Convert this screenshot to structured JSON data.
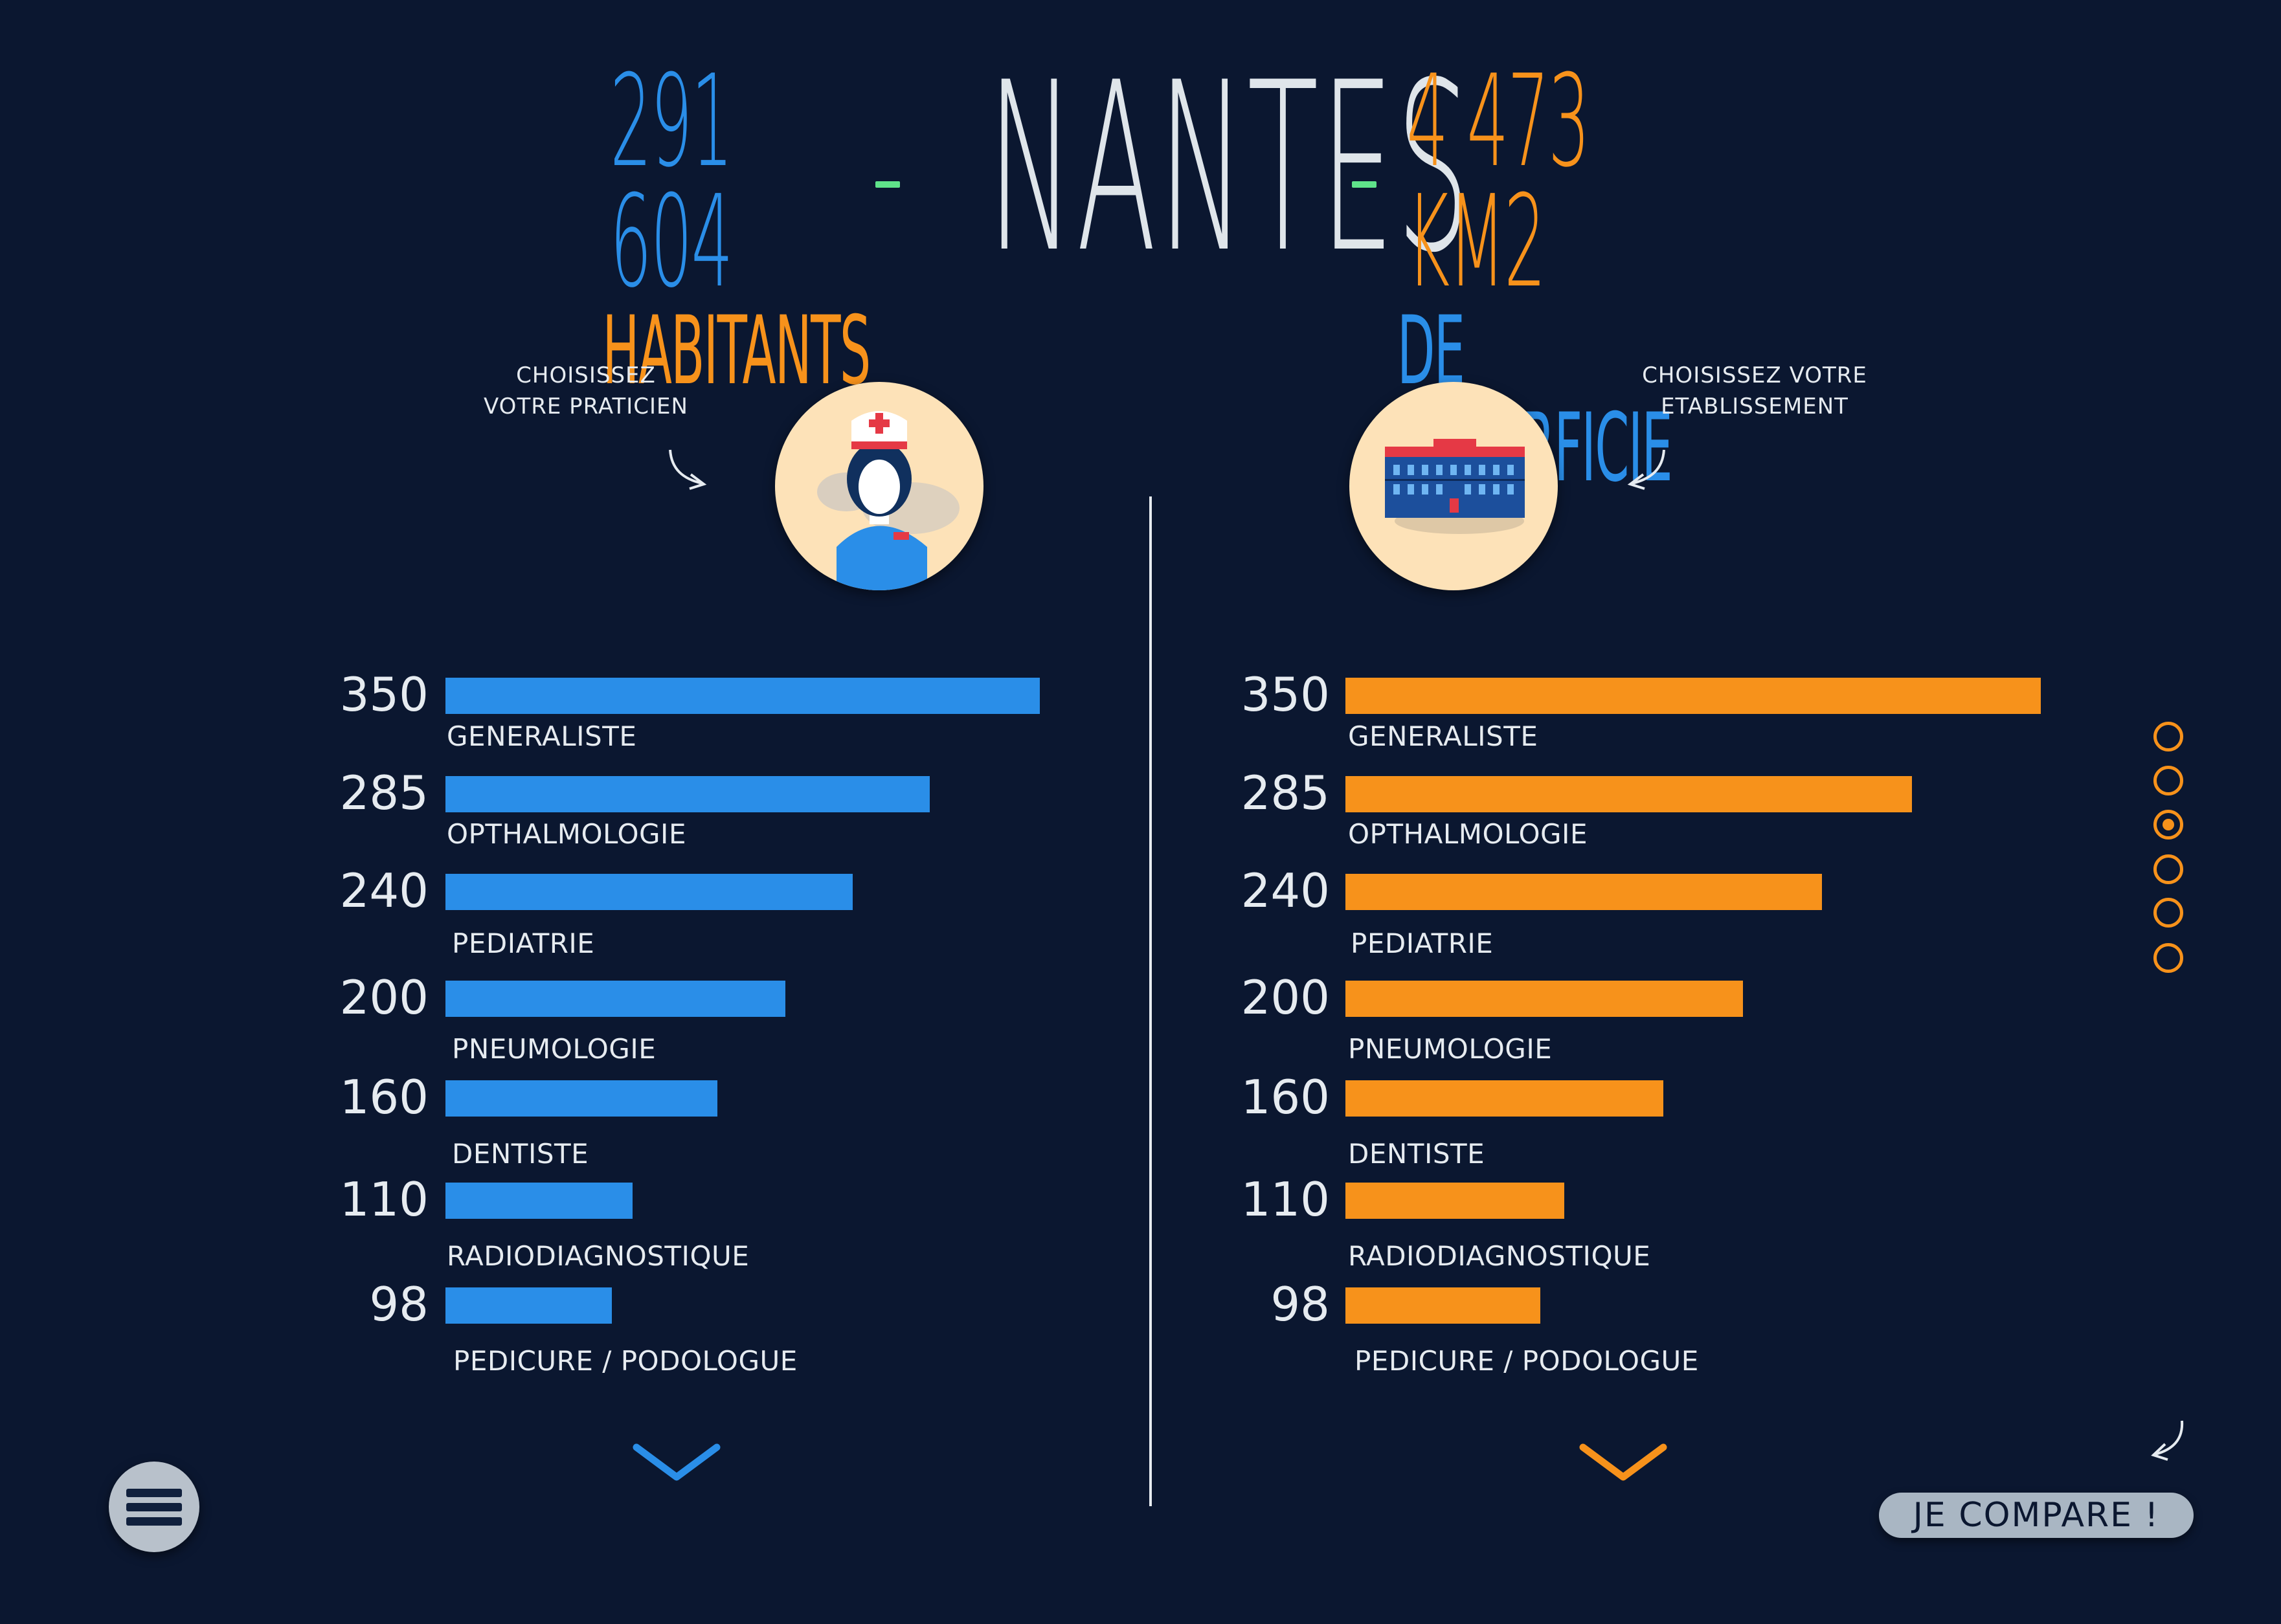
{
  "header": {
    "population_value": "291 604",
    "population_label": "HABITANTS",
    "city": "NANTES",
    "area_value": "4 473 KM2",
    "area_label": "DE SUPERFICIE"
  },
  "left_panel": {
    "prompt_line1": "CHOISISSEZ",
    "prompt_line2": "VOTRE PRATICIEN",
    "icon": "nurse-icon"
  },
  "right_panel": {
    "prompt_line1": "CHOISISSEZ VOTRE",
    "prompt_line2": "ETABLISSEMENT",
    "icon": "hospital-building-icon"
  },
  "chart_data": [
    {
      "type": "bar",
      "orientation": "horizontal",
      "color": "#2a8ee8",
      "categories": [
        "GENERALISTE",
        "OPTHALMOLOGIE",
        "PEDIATRIE",
        "PNEUMOLOGIE",
        "DENTISTE",
        "RADIODIAGNOSTIQUE",
        "PEDICURE / PODOLOGUE"
      ],
      "values": [
        350,
        285,
        240,
        200,
        160,
        110,
        98
      ],
      "data_labels": [
        "350",
        "285",
        "240",
        "200",
        "160",
        "110",
        "98"
      ]
    },
    {
      "type": "bar",
      "orientation": "horizontal",
      "color": "#f7921b",
      "categories": [
        "GENERALISTE",
        "OPTHALMOLOGIE",
        "PEDIATRIE",
        "PNEUMOLOGIE",
        "DENTISTE",
        "RADIODIAGNOSTIQUE",
        "PEDICURE / PODOLOGUE"
      ],
      "values": [
        350,
        285,
        240,
        200,
        160,
        110,
        98
      ],
      "data_labels": [
        "350",
        "285",
        "240",
        "200",
        "160",
        "110",
        "98"
      ]
    }
  ],
  "pager": {
    "count": 6,
    "active": 3
  },
  "buttons": {
    "compare_label": "JE COMPARE !",
    "menu_icon": "hamburger-menu-icon",
    "scroll_icon": "chevron-down-icon"
  },
  "colors": {
    "background": "#0b1730",
    "accent_blue": "#2a8ee8",
    "accent_orange": "#f7921b",
    "dash_green": "#5fe38a"
  }
}
